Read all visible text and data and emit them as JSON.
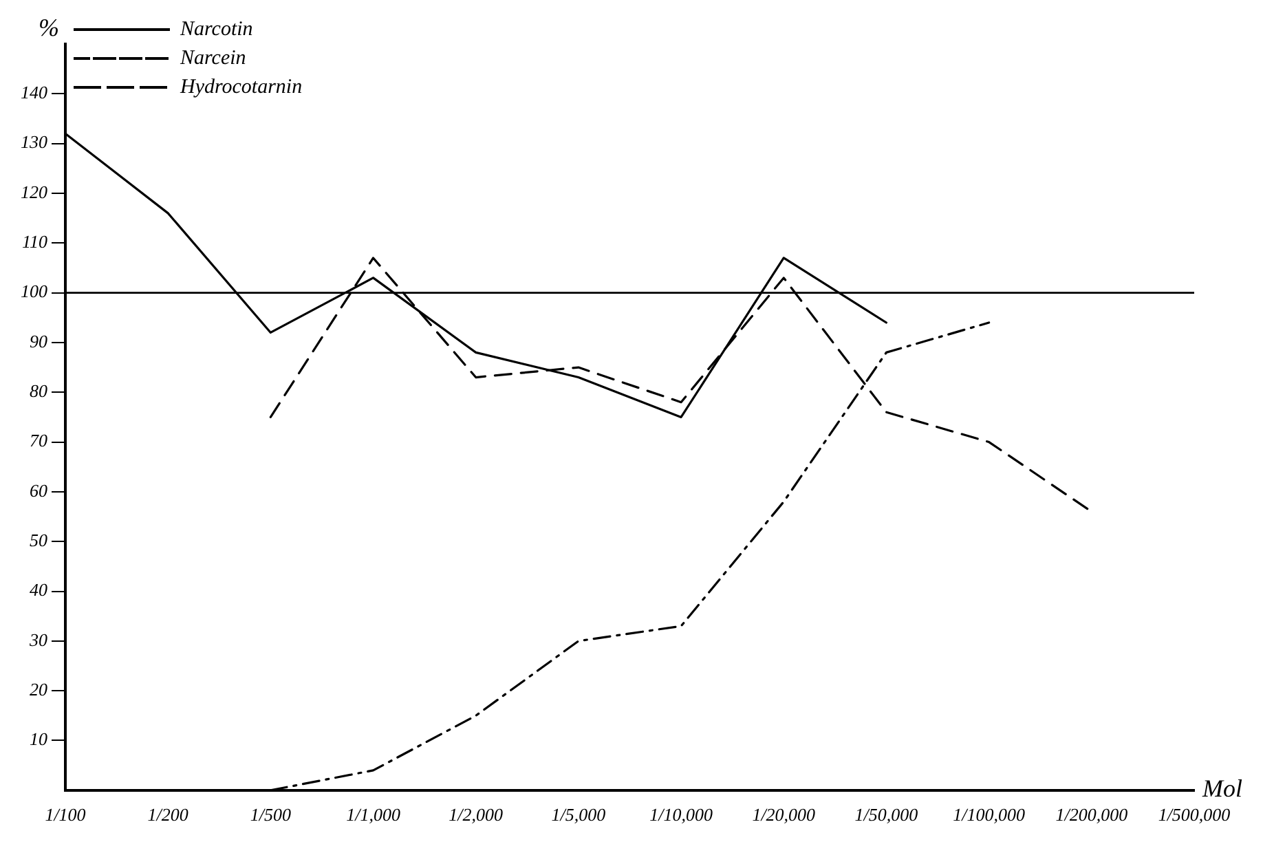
{
  "chart_data": {
    "type": "line",
    "xlabel": "Mol",
    "ylabel": "%",
    "categories": [
      "1/100",
      "1/200",
      "1/500",
      "1/1,000",
      "1/2,000",
      "1/5,000",
      "1/10,000",
      "1/20,000",
      "1/50,000",
      "1/100,000",
      "1/200,000",
      "1/500,000"
    ],
    "series": [
      {
        "name": "Narcotin",
        "color": "#000000",
        "line_style": "solid",
        "values": [
          132,
          116,
          92,
          103,
          88,
          83,
          75,
          107,
          94,
          null,
          null,
          null
        ]
      },
      {
        "name": "Narcein",
        "color": "#000000",
        "line_style": "dashed",
        "values": [
          null,
          null,
          75,
          107,
          83,
          85,
          78,
          103,
          76,
          70,
          56,
          null
        ]
      },
      {
        "name": "Hydrocotarnin",
        "color": "#000000",
        "line_style": "dashdot",
        "values": [
          null,
          null,
          0,
          4,
          15,
          30,
          33,
          58,
          88,
          94,
          null,
          null
        ]
      }
    ],
    "ylim": [
      0,
      150
    ],
    "yticks": [
      10,
      20,
      30,
      40,
      50,
      60,
      70,
      80,
      90,
      100,
      110,
      120,
      130,
      140
    ],
    "ref_lines": [
      {
        "axis": "y",
        "value": 100,
        "color": "#000000"
      }
    ],
    "grid": false,
    "legend": "top left",
    "marker": "none"
  }
}
